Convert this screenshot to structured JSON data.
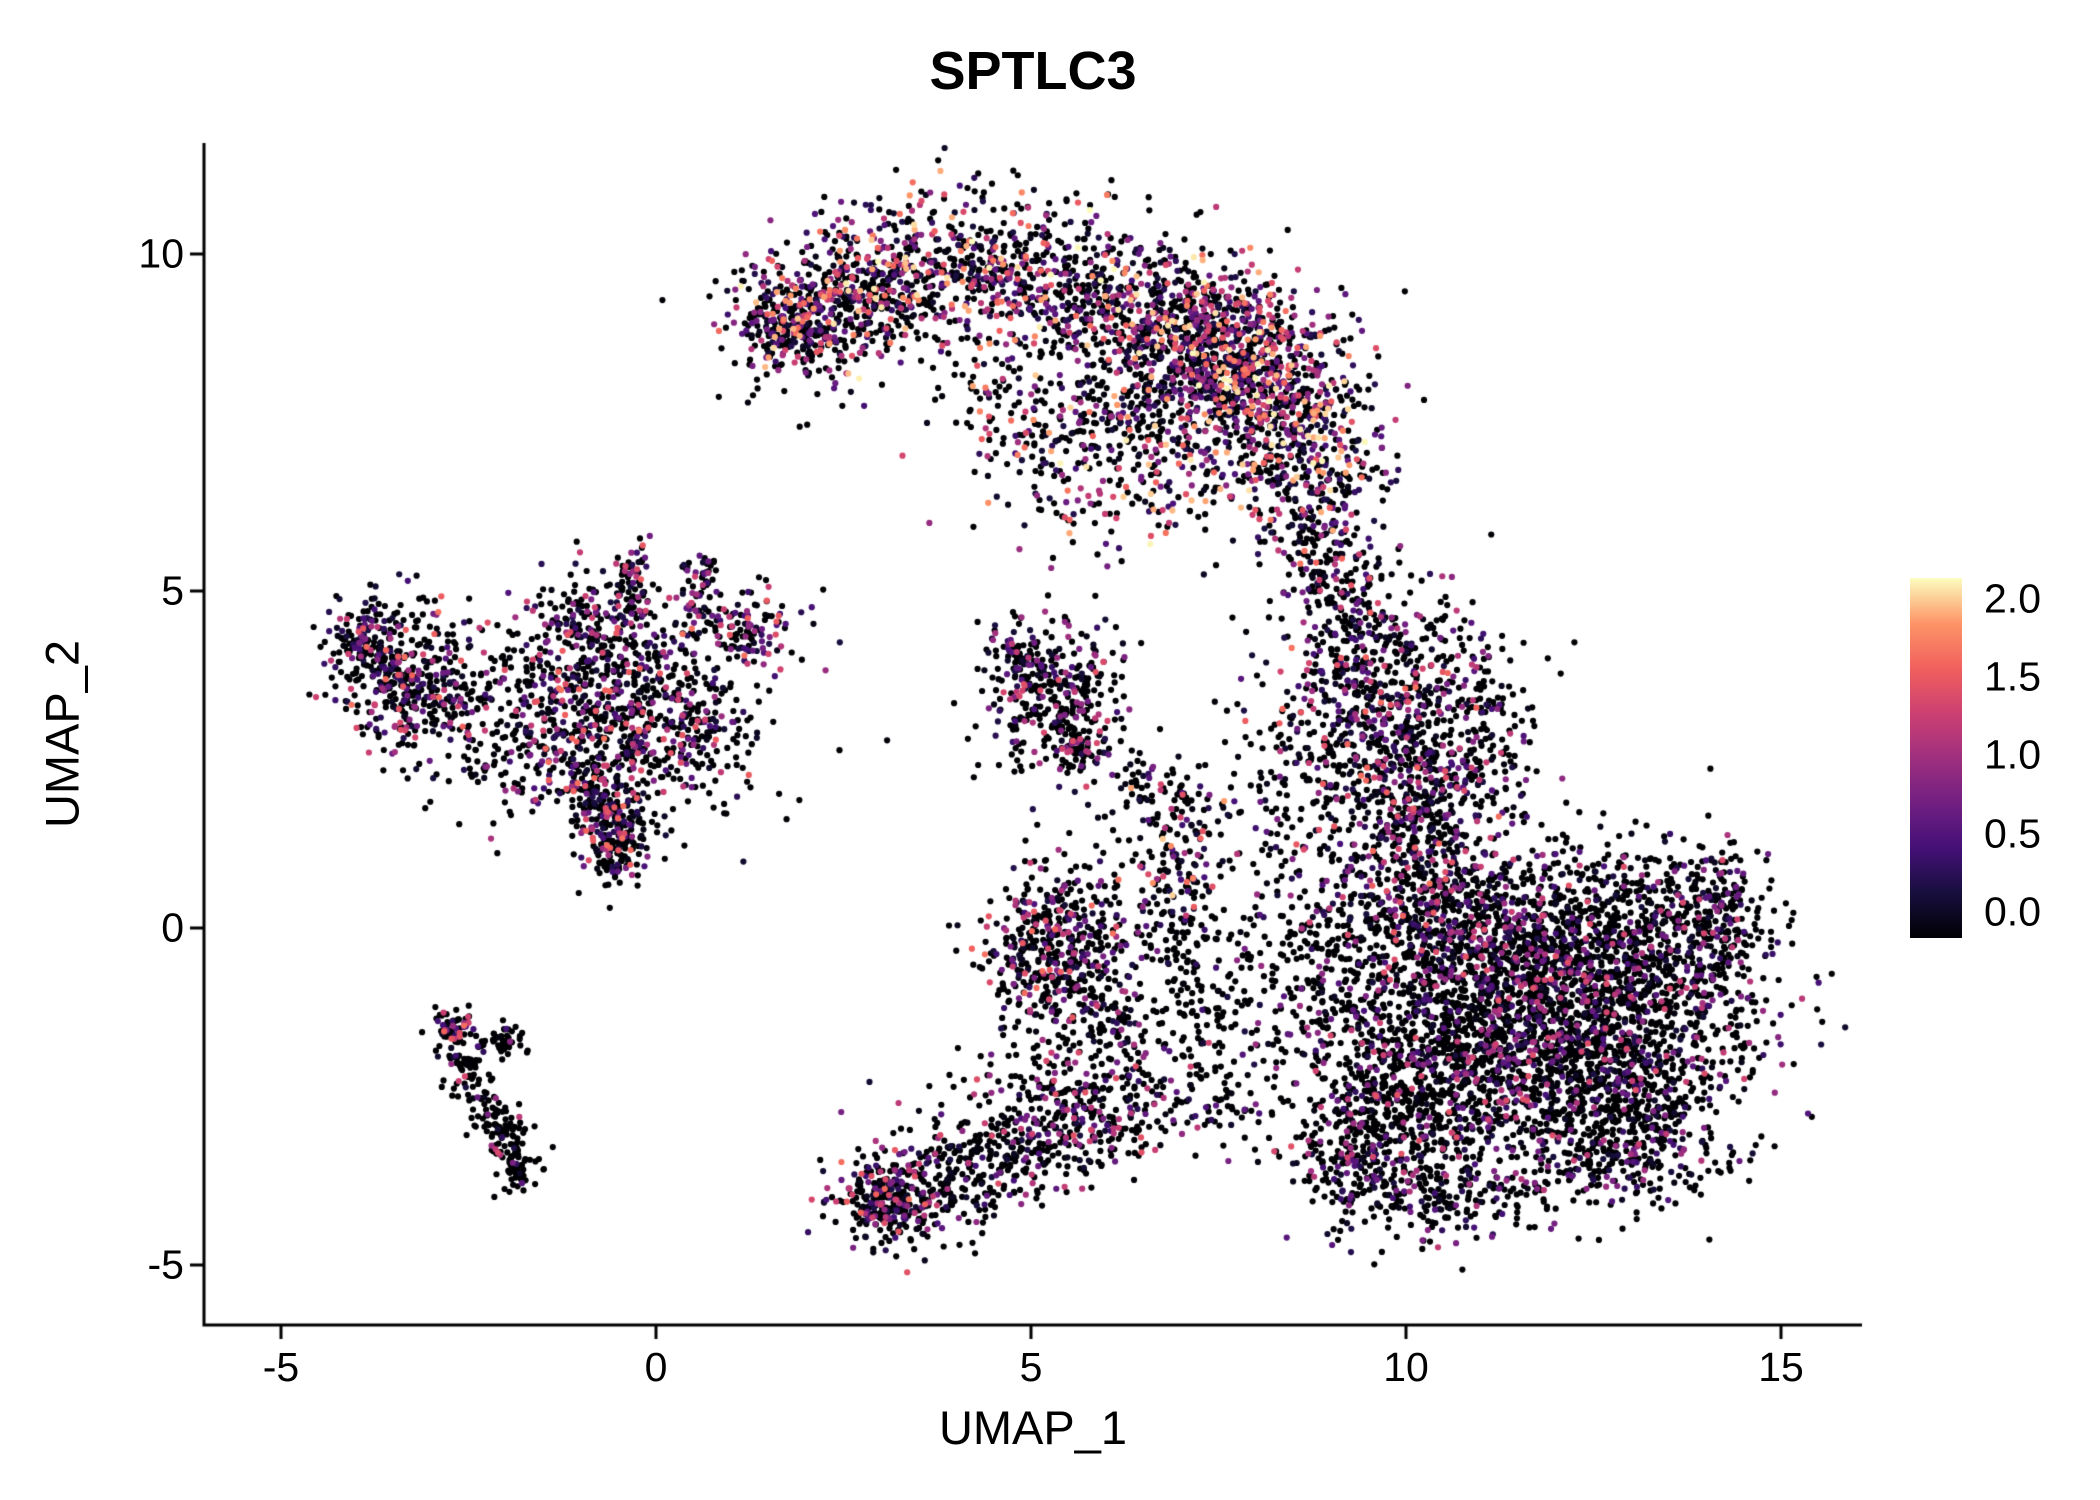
{
  "chart_data": {
    "type": "scatter",
    "title": "SPTLC3",
    "xlabel": "UMAP_1",
    "ylabel": "UMAP_2",
    "grid": false,
    "background": "#ffffff",
    "axis_color": "#000000",
    "x_range": [
      -6.0,
      16.1
    ],
    "y_range": [
      -5.9,
      11.6
    ],
    "x_ticks": [
      {
        "v": -5,
        "label": "-5"
      },
      {
        "v": 0,
        "label": "0"
      },
      {
        "v": 5,
        "label": "5"
      },
      {
        "v": 10,
        "label": "10"
      },
      {
        "v": 15,
        "label": "15"
      }
    ],
    "y_ticks": [
      {
        "v": -5,
        "label": "-5"
      },
      {
        "v": 0,
        "label": "0"
      },
      {
        "v": 5,
        "label": "5"
      },
      {
        "v": 10,
        "label": "10"
      }
    ],
    "legend": {
      "position": "right",
      "min": 0.0,
      "max": 2.0,
      "ticks": [
        {
          "v": 2.0,
          "label": "2.0"
        },
        {
          "v": 1.5,
          "label": "1.5"
        },
        {
          "v": 1.0,
          "label": "1.0"
        },
        {
          "v": 0.5,
          "label": "0.5"
        },
        {
          "v": 0.0,
          "label": "0.0"
        }
      ]
    },
    "colormap": {
      "name": "magma",
      "stops": [
        "#000004",
        "#180f3e",
        "#451077",
        "#721f81",
        "#9f2f7f",
        "#cd4071",
        "#f1605d",
        "#fd9567",
        "#fcfdbf"
      ]
    },
    "point_radius_px": 3.1,
    "seed": 42,
    "clusters": [
      {
        "type": "band",
        "pts": [
          [
            1.6,
            8.8
          ],
          [
            2.4,
            9.3
          ],
          [
            3.3,
            9.8
          ],
          [
            4.5,
            9.8
          ],
          [
            5.8,
            9.5
          ],
          [
            7.0,
            9.0
          ],
          [
            7.9,
            8.4
          ],
          [
            8.5,
            7.5
          ],
          [
            8.8,
            6.4
          ]
        ],
        "w": 0.55,
        "n": 2400,
        "zero": 0.42,
        "max": 2.0
      },
      {
        "type": "gauss",
        "cx": 7.6,
        "cy": 8.6,
        "sx": 0.8,
        "sy": 0.6,
        "n": 400,
        "zero": 0.35,
        "max": 2.0
      },
      {
        "type": "gauss",
        "cx": 6.6,
        "cy": 7.2,
        "sx": 0.9,
        "sy": 0.8,
        "n": 420,
        "zero": 0.45,
        "max": 2.0
      },
      {
        "type": "gauss",
        "cx": 1.85,
        "cy": 8.9,
        "sx": 0.3,
        "sy": 0.28,
        "n": 130,
        "zero": 0.4,
        "max": 1.8
      },
      {
        "type": "gauss",
        "cx": 5.0,
        "cy": 7.9,
        "sx": 0.7,
        "sy": 0.5,
        "n": 130,
        "zero": 0.5,
        "max": 1.8
      },
      {
        "type": "gauss",
        "cx": 4.9,
        "cy": 7.0,
        "sx": 0.5,
        "sy": 0.4,
        "n": 30,
        "zero": 0.55,
        "max": 1.4
      },
      {
        "type": "band",
        "pts": [
          [
            8.8,
            6.2
          ],
          [
            9.0,
            5.2
          ],
          [
            9.2,
            4.3
          ]
        ],
        "w": 0.35,
        "n": 220,
        "zero": 0.5,
        "max": 1.6
      },
      {
        "type": "gauss",
        "cx": 9.6,
        "cy": 3.3,
        "sx": 0.75,
        "sy": 0.9,
        "n": 650,
        "zero": 0.5,
        "max": 1.6
      },
      {
        "type": "gauss",
        "cx": 10.3,
        "cy": 2.1,
        "sx": 0.5,
        "sy": 0.5,
        "n": 220,
        "zero": 0.6,
        "max": 1.4
      },
      {
        "type": "gauss",
        "cx": 10.8,
        "cy": 3.1,
        "sx": 0.5,
        "sy": 0.7,
        "n": 130,
        "zero": 0.7,
        "max": 1.2
      },
      {
        "type": "gauss",
        "cx": 8.5,
        "cy": 2.0,
        "sx": 0.5,
        "sy": 0.6,
        "n": 90,
        "zero": 0.7,
        "max": 1.2
      },
      {
        "type": "gauss",
        "cx": 11.2,
        "cy": -0.4,
        "sx": 1.2,
        "sy": 0.9,
        "n": 1400,
        "zero": 0.68,
        "max": 1.4
      },
      {
        "type": "gauss",
        "cx": 12.4,
        "cy": -1.7,
        "sx": 1.1,
        "sy": 0.9,
        "n": 1250,
        "zero": 0.7,
        "max": 1.4
      },
      {
        "type": "gauss",
        "cx": 10.4,
        "cy": -2.4,
        "sx": 0.9,
        "sy": 0.8,
        "n": 650,
        "zero": 0.68,
        "max": 1.4
      },
      {
        "type": "gauss",
        "cx": 13.3,
        "cy": -0.3,
        "sx": 0.8,
        "sy": 0.8,
        "n": 500,
        "zero": 0.7,
        "max": 1.2
      },
      {
        "type": "gauss",
        "cx": 12.9,
        "cy": -3.1,
        "sx": 0.7,
        "sy": 0.5,
        "n": 350,
        "zero": 0.7,
        "max": 1.2
      },
      {
        "type": "gauss",
        "cx": 14.2,
        "cy": 0.3,
        "sx": 0.3,
        "sy": 0.45,
        "n": 130,
        "zero": 0.55,
        "max": 1.4
      },
      {
        "type": "gauss",
        "cx": 10.1,
        "cy": 0.9,
        "sx": 0.5,
        "sy": 0.55,
        "n": 250,
        "zero": 0.55,
        "max": 1.6
      },
      {
        "type": "gauss",
        "cx": 8.9,
        "cy": -0.6,
        "sx": 0.8,
        "sy": 0.9,
        "n": 280,
        "zero": 0.75,
        "max": 1.2
      },
      {
        "type": "gauss",
        "cx": 9.6,
        "cy": -3.2,
        "sx": 0.6,
        "sy": 0.6,
        "n": 250,
        "zero": 0.7,
        "max": 1.2
      },
      {
        "type": "band",
        "pts": [
          [
            9.0,
            -3.8
          ],
          [
            10.5,
            -4.1
          ],
          [
            11.8,
            -3.9
          ]
        ],
        "w": 0.3,
        "n": 200,
        "zero": 0.7,
        "max": 1.2
      },
      {
        "type": "band",
        "pts": [
          [
            7.0,
            0.9
          ],
          [
            7.1,
            -0.5
          ],
          [
            7.4,
            -1.8
          ],
          [
            7.7,
            -3.0
          ]
        ],
        "w": 0.3,
        "n": 200,
        "zero": 0.7,
        "max": 1.6
      },
      {
        "type": "gauss",
        "cx": 7.0,
        "cy": 1.3,
        "sx": 0.35,
        "sy": 0.5,
        "n": 120,
        "zero": 0.4,
        "max": 2.0
      },
      {
        "type": "gauss",
        "cx": 6.3,
        "cy": -0.3,
        "sx": 0.6,
        "sy": 0.7,
        "n": 70,
        "zero": 0.8,
        "max": 1.2
      },
      {
        "type": "gauss",
        "cx": 5.3,
        "cy": -0.25,
        "sx": 0.45,
        "sy": 0.55,
        "n": 420,
        "zero": 0.55,
        "max": 1.6
      },
      {
        "type": "band",
        "pts": [
          [
            5.7,
            -0.9
          ],
          [
            6.2,
            -1.5
          ]
        ],
        "w": 0.25,
        "n": 90,
        "zero": 0.7,
        "max": 1.2
      },
      {
        "type": "band",
        "pts": [
          [
            2.9,
            -4.1
          ],
          [
            3.6,
            -3.8
          ],
          [
            4.4,
            -3.4
          ],
          [
            5.2,
            -3.1
          ],
          [
            6.0,
            -2.7
          ],
          [
            6.8,
            -2.2
          ]
        ],
        "w": 0.45,
        "n": 650,
        "zero": 0.6,
        "max": 1.4
      },
      {
        "type": "gauss",
        "cx": 3.1,
        "cy": -4.0,
        "sx": 0.35,
        "sy": 0.3,
        "n": 220,
        "zero": 0.5,
        "max": 1.6
      },
      {
        "type": "gauss",
        "cx": 5.3,
        "cy": -2.2,
        "sx": 0.8,
        "sy": 0.5,
        "n": 120,
        "zero": 0.75,
        "max": 1.2
      },
      {
        "type": "gauss",
        "cx": 5.35,
        "cy": 3.45,
        "sx": 0.45,
        "sy": 0.55,
        "n": 320,
        "zero": 0.6,
        "max": 1.4
      },
      {
        "type": "band",
        "pts": [
          [
            4.6,
            4.3
          ],
          [
            5.1,
            3.8
          ]
        ],
        "w": 0.15,
        "n": 60,
        "zero": 0.6,
        "max": 1.2
      },
      {
        "type": "band",
        "pts": [
          [
            5.5,
            3.0
          ],
          [
            5.8,
            2.4
          ]
        ],
        "w": 0.15,
        "n": 70,
        "zero": 0.55,
        "max": 1.4
      },
      {
        "type": "gauss",
        "cx": 6.4,
        "cy": 2.1,
        "sx": 0.4,
        "sy": 0.4,
        "n": 60,
        "zero": 0.7,
        "max": 1.2
      },
      {
        "type": "gauss",
        "cx": -0.45,
        "cy": 3.3,
        "sx": 0.95,
        "sy": 0.85,
        "n": 950,
        "zero": 0.55,
        "max": 1.6
      },
      {
        "type": "gauss",
        "cx": -3.25,
        "cy": 3.6,
        "sx": 0.5,
        "sy": 0.55,
        "n": 380,
        "zero": 0.5,
        "max": 1.6
      },
      {
        "type": "gauss",
        "cx": -3.9,
        "cy": 4.3,
        "sx": 0.25,
        "sy": 0.3,
        "n": 130,
        "zero": 0.5,
        "max": 1.4
      },
      {
        "type": "band",
        "pts": [
          [
            -0.85,
            2.3
          ],
          [
            -0.6,
            1.5
          ],
          [
            -0.45,
            0.9
          ]
        ],
        "w": 0.22,
        "n": 260,
        "zero": 0.5,
        "max": 1.6
      },
      {
        "type": "band",
        "pts": [
          [
            -0.4,
            4.6
          ],
          [
            -0.25,
            5.7
          ]
        ],
        "w": 0.13,
        "n": 70,
        "zero": 0.5,
        "max": 1.6
      },
      {
        "type": "band",
        "pts": [
          [
            0.45,
            4.5
          ],
          [
            0.7,
            5.4
          ]
        ],
        "w": 0.13,
        "n": 60,
        "zero": 0.5,
        "max": 1.4
      },
      {
        "type": "gauss",
        "cx": 1.3,
        "cy": 4.45,
        "sx": 0.35,
        "sy": 0.3,
        "n": 90,
        "zero": 0.45,
        "max": 1.6
      },
      {
        "type": "gauss",
        "cx": -2.0,
        "cy": 2.9,
        "sx": 0.6,
        "sy": 0.6,
        "n": 110,
        "zero": 0.7,
        "max": 1.4
      },
      {
        "type": "gauss",
        "cx": -1.1,
        "cy": 4.6,
        "sx": 0.4,
        "sy": 0.35,
        "n": 90,
        "zero": 0.5,
        "max": 1.4
      },
      {
        "type": "band",
        "pts": [
          [
            -2.75,
            -1.45
          ],
          [
            -2.55,
            -2.1
          ],
          [
            -2.2,
            -2.7
          ],
          [
            -1.9,
            -3.3
          ],
          [
            -1.8,
            -3.85
          ]
        ],
        "w": 0.15,
        "n": 230,
        "zero": 0.85,
        "max": 1.4
      },
      {
        "type": "gauss",
        "cx": -2.7,
        "cy": -1.5,
        "sx": 0.12,
        "sy": 0.12,
        "n": 40,
        "zero": 0.3,
        "max": 1.6
      },
      {
        "type": "band",
        "pts": [
          [
            -2.35,
            -1.8
          ],
          [
            -1.85,
            -1.6
          ]
        ],
        "w": 0.12,
        "n": 45,
        "zero": 0.8,
        "max": 1.2
      }
    ]
  }
}
